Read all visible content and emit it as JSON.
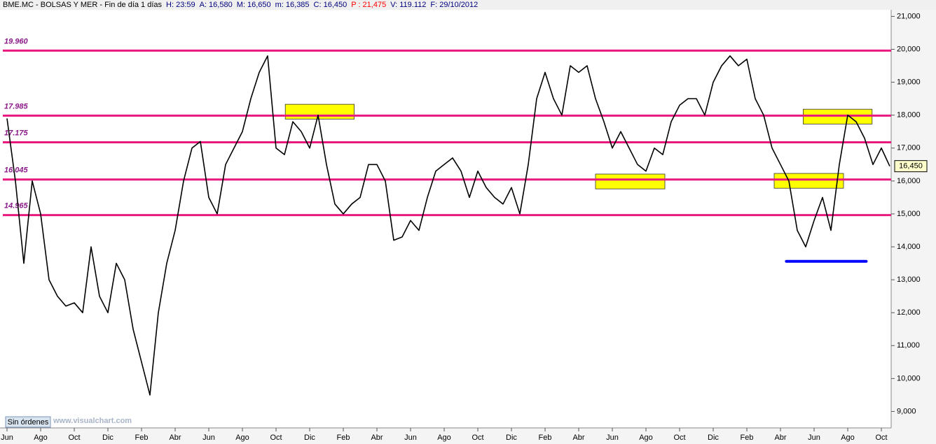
{
  "chart_data": {
    "type": "line",
    "header": [
      {
        "text": "BME.MC - BOLSAS Y MER - Fin de día 1 días",
        "color": "#000000"
      },
      {
        "text": "H: 23:59",
        "color": "#000080"
      },
      {
        "text": "A: 16,580",
        "color": "#000080"
      },
      {
        "text": "M: 16,650",
        "color": "#000080"
      },
      {
        "text": "m: 16,385",
        "color": "#000080"
      },
      {
        "text": "C: 16,450",
        "color": "#000080"
      },
      {
        "text": "P : 21,475",
        "color": "#ff0000"
      },
      {
        "text": "V: 119.112",
        "color": "#000080"
      },
      {
        "text": "F: 29/10/2012",
        "color": "#000080"
      }
    ],
    "categories": [
      "Jun",
      null,
      null,
      null,
      "Ago",
      null,
      null,
      null,
      "Oct",
      null,
      null,
      null,
      "Dic",
      null,
      null,
      null,
      "Feb",
      null,
      null,
      null,
      "Abr",
      null,
      null,
      null,
      "Jun",
      null,
      null,
      null,
      "Ago",
      null,
      null,
      null,
      "Oct",
      null,
      null,
      null,
      "Dic",
      null,
      null,
      null,
      "Feb",
      null,
      null,
      null,
      "Abr",
      null,
      null,
      null,
      "Jun",
      null,
      null,
      null,
      "Ago",
      null,
      null,
      null,
      "Oct",
      null,
      null,
      null,
      "Dic",
      null,
      null,
      null,
      "Feb",
      null,
      null,
      null,
      "Abr",
      null,
      null,
      null,
      "Jun",
      null,
      null,
      null,
      "Ago",
      null,
      null,
      null,
      "Oct",
      null,
      null,
      null,
      "Dic",
      null,
      null,
      null,
      "Feb",
      null,
      null,
      null,
      "Abr",
      null,
      null,
      null,
      "Jun",
      null,
      null,
      null,
      "Ago",
      null,
      null,
      null,
      "Oct",
      null
    ],
    "series": [
      {
        "name": "BME.MC",
        "color": "#000000",
        "values": [
          17.9,
          16,
          13.5,
          16,
          15,
          13,
          12.5,
          12.2,
          12.3,
          12,
          14,
          12.5,
          12,
          13.5,
          13,
          11.5,
          10.5,
          9.5,
          12,
          13.5,
          14.5,
          16,
          17,
          17.2,
          15.5,
          15,
          16.5,
          17,
          17.5,
          18.5,
          19.3,
          19.8,
          17,
          16.8,
          17.8,
          17.5,
          17,
          18,
          16.5,
          15.3,
          15,
          15.3,
          15.5,
          16.5,
          16.5,
          16,
          14.2,
          14.3,
          14.8,
          14.5,
          15.5,
          16.3,
          16.5,
          16.7,
          16.3,
          15.5,
          16.3,
          15.8,
          15.5,
          15.3,
          15.8,
          15,
          16.5,
          18.5,
          19.3,
          18.5,
          18,
          19.5,
          19.3,
          19.5,
          18.5,
          17.8,
          17,
          17.5,
          17,
          16.5,
          16.3,
          17,
          16.8,
          17.8,
          18.3,
          18.5,
          18.5,
          18,
          19,
          19.5,
          19.8,
          19.5,
          19.7,
          18.5,
          18,
          17,
          16.5,
          16,
          14.5,
          14,
          14.8,
          15.5,
          14.5,
          16.5,
          18,
          17.8,
          17.3,
          16.5,
          17,
          16.45
        ]
      }
    ],
    "last_label": "16,450",
    "ylim": [
      8.5,
      21.2
    ],
    "yticks": [
      {
        "value": 9,
        "label": "9,000"
      },
      {
        "value": 10,
        "label": "10,000"
      },
      {
        "value": 11,
        "label": "11,000"
      },
      {
        "value": 12,
        "label": "12,000"
      },
      {
        "value": 13,
        "label": "13,000"
      },
      {
        "value": 14,
        "label": "14,000"
      },
      {
        "value": 15,
        "label": "15,000"
      },
      {
        "value": 16,
        "label": "16,000"
      },
      {
        "value": 17,
        "label": "17,000"
      },
      {
        "value": 18,
        "label": "18,000"
      },
      {
        "value": 19,
        "label": "19,000"
      },
      {
        "value": 20,
        "label": "20,000"
      },
      {
        "value": 21,
        "label": "21,000"
      }
    ],
    "levels": [
      {
        "value": 19.96,
        "label": "19.960"
      },
      {
        "value": 17.985,
        "label": "17.985"
      },
      {
        "value": 17.175,
        "label": "17.175"
      },
      {
        "value": 16.045,
        "label": "16.045"
      },
      {
        "value": 14.965,
        "label": "14.965"
      }
    ],
    "level_color": "#e8187f",
    "zones": [
      {
        "from": 33.1,
        "to": 41.3,
        "low": 17.88,
        "high": 18.33
      },
      {
        "from": 70,
        "to": 78.25,
        "low": 15.76,
        "high": 16.21
      },
      {
        "from": 91.25,
        "to": 99.5,
        "low": 15.78,
        "high": 16.23
      },
      {
        "from": 94.7,
        "to": 102.9,
        "low": 17.73,
        "high": 18.18
      }
    ],
    "zone_color": "#ffff00",
    "support": {
      "value": 13.56,
      "from": 92.7,
      "to": 102.2,
      "color": "#0000ff"
    },
    "footer": {
      "button": "Sin órdenes",
      "watermark": "www.visualchart.com"
    }
  }
}
